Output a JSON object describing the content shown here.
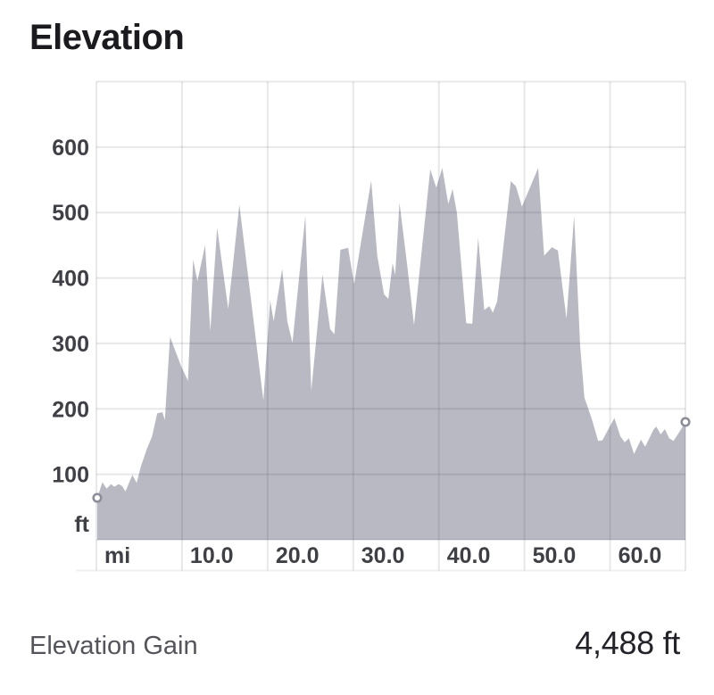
{
  "header": {
    "title": "Elevation"
  },
  "footer": {
    "label": "Elevation Gain",
    "value": "4,488 ft"
  },
  "chart_data": {
    "type": "area",
    "title": "Elevation",
    "x_unit": "mi",
    "y_unit": "ft",
    "x_range": [
      0,
      68.8
    ],
    "y_range": [
      0,
      700
    ],
    "grid": true,
    "legend": "none",
    "area_color": "#b9b9c4",
    "grid_color": "rgba(45,45,65,0.11)",
    "axis_text_color": "#3f3f46",
    "endpoint_marker": {
      "fill": "#ffffff",
      "stroke": "#8e8e9a"
    },
    "x_ticks": [
      {
        "value": 0,
        "label": "mi"
      },
      {
        "value": 10,
        "label": "10.0"
      },
      {
        "value": 20,
        "label": "20.0"
      },
      {
        "value": 30,
        "label": "30.0"
      },
      {
        "value": 40,
        "label": "40.0"
      },
      {
        "value": 50,
        "label": "50.0"
      },
      {
        "value": 60,
        "label": "60.0"
      }
    ],
    "y_ticks": [
      {
        "value": 100,
        "label": "100"
      },
      {
        "value": 200,
        "label": "200"
      },
      {
        "value": 300,
        "label": "300"
      },
      {
        "value": 400,
        "label": "400"
      },
      {
        "value": 500,
        "label": "500"
      },
      {
        "value": 600,
        "label": "600"
      }
    ],
    "y_unit_label": "ft",
    "points": [
      [
        0.1,
        64
      ],
      [
        0.7,
        88
      ],
      [
        1.2,
        78
      ],
      [
        1.7,
        85
      ],
      [
        2.1,
        81
      ],
      [
        2.6,
        85
      ],
      [
        3.0,
        82
      ],
      [
        3.4,
        74
      ],
      [
        4.2,
        99
      ],
      [
        4.7,
        87
      ],
      [
        5.2,
        112
      ],
      [
        5.9,
        139
      ],
      [
        6.5,
        158
      ],
      [
        7.1,
        193
      ],
      [
        7.7,
        195
      ],
      [
        8.0,
        183
      ],
      [
        8.6,
        310
      ],
      [
        9.9,
        265
      ],
      [
        10.7,
        243
      ],
      [
        11.3,
        428
      ],
      [
        11.8,
        395
      ],
      [
        12.7,
        450
      ],
      [
        13.3,
        319
      ],
      [
        14.1,
        477
      ],
      [
        15.4,
        353
      ],
      [
        16.7,
        512
      ],
      [
        17.9,
        384
      ],
      [
        18.8,
        288
      ],
      [
        19.5,
        213
      ],
      [
        20.3,
        366
      ],
      [
        20.7,
        334
      ],
      [
        21.7,
        414
      ],
      [
        22.3,
        334
      ],
      [
        22.9,
        301
      ],
      [
        24.4,
        495
      ],
      [
        25.1,
        228
      ],
      [
        26.4,
        405
      ],
      [
        27.3,
        322
      ],
      [
        27.8,
        314
      ],
      [
        28.5,
        443
      ],
      [
        29.4,
        446
      ],
      [
        30.1,
        391
      ],
      [
        32.1,
        549
      ],
      [
        32.8,
        434
      ],
      [
        33.6,
        375
      ],
      [
        34.1,
        368
      ],
      [
        34.6,
        423
      ],
      [
        34.9,
        405
      ],
      [
        35.4,
        515
      ],
      [
        36.3,
        420
      ],
      [
        37.1,
        328
      ],
      [
        37.9,
        430
      ],
      [
        39.0,
        566
      ],
      [
        39.7,
        538
      ],
      [
        40.4,
        568
      ],
      [
        41.1,
        513
      ],
      [
        41.6,
        536
      ],
      [
        42.1,
        500
      ],
      [
        43.2,
        331
      ],
      [
        43.9,
        330
      ],
      [
        44.6,
        462
      ],
      [
        45.3,
        351
      ],
      [
        45.9,
        357
      ],
      [
        46.3,
        347
      ],
      [
        46.8,
        364
      ],
      [
        47.6,
        455
      ],
      [
        48.4,
        548
      ],
      [
        49.0,
        540
      ],
      [
        49.7,
        509
      ],
      [
        51.6,
        568
      ],
      [
        52.3,
        434
      ],
      [
        53.2,
        447
      ],
      [
        53.9,
        442
      ],
      [
        54.9,
        338
      ],
      [
        55.8,
        495
      ],
      [
        56.5,
        297
      ],
      [
        57.0,
        217
      ],
      [
        57.3,
        206
      ],
      [
        57.9,
        183
      ],
      [
        58.6,
        151
      ],
      [
        59.1,
        152
      ],
      [
        60.5,
        186
      ],
      [
        61.2,
        158
      ],
      [
        61.7,
        149
      ],
      [
        62.2,
        155
      ],
      [
        62.8,
        131
      ],
      [
        63.6,
        153
      ],
      [
        64.1,
        142
      ],
      [
        65.1,
        169
      ],
      [
        65.4,
        173
      ],
      [
        65.9,
        161
      ],
      [
        66.4,
        169
      ],
      [
        66.9,
        155
      ],
      [
        67.4,
        151
      ],
      [
        68.1,
        165
      ],
      [
        68.8,
        180
      ]
    ]
  }
}
